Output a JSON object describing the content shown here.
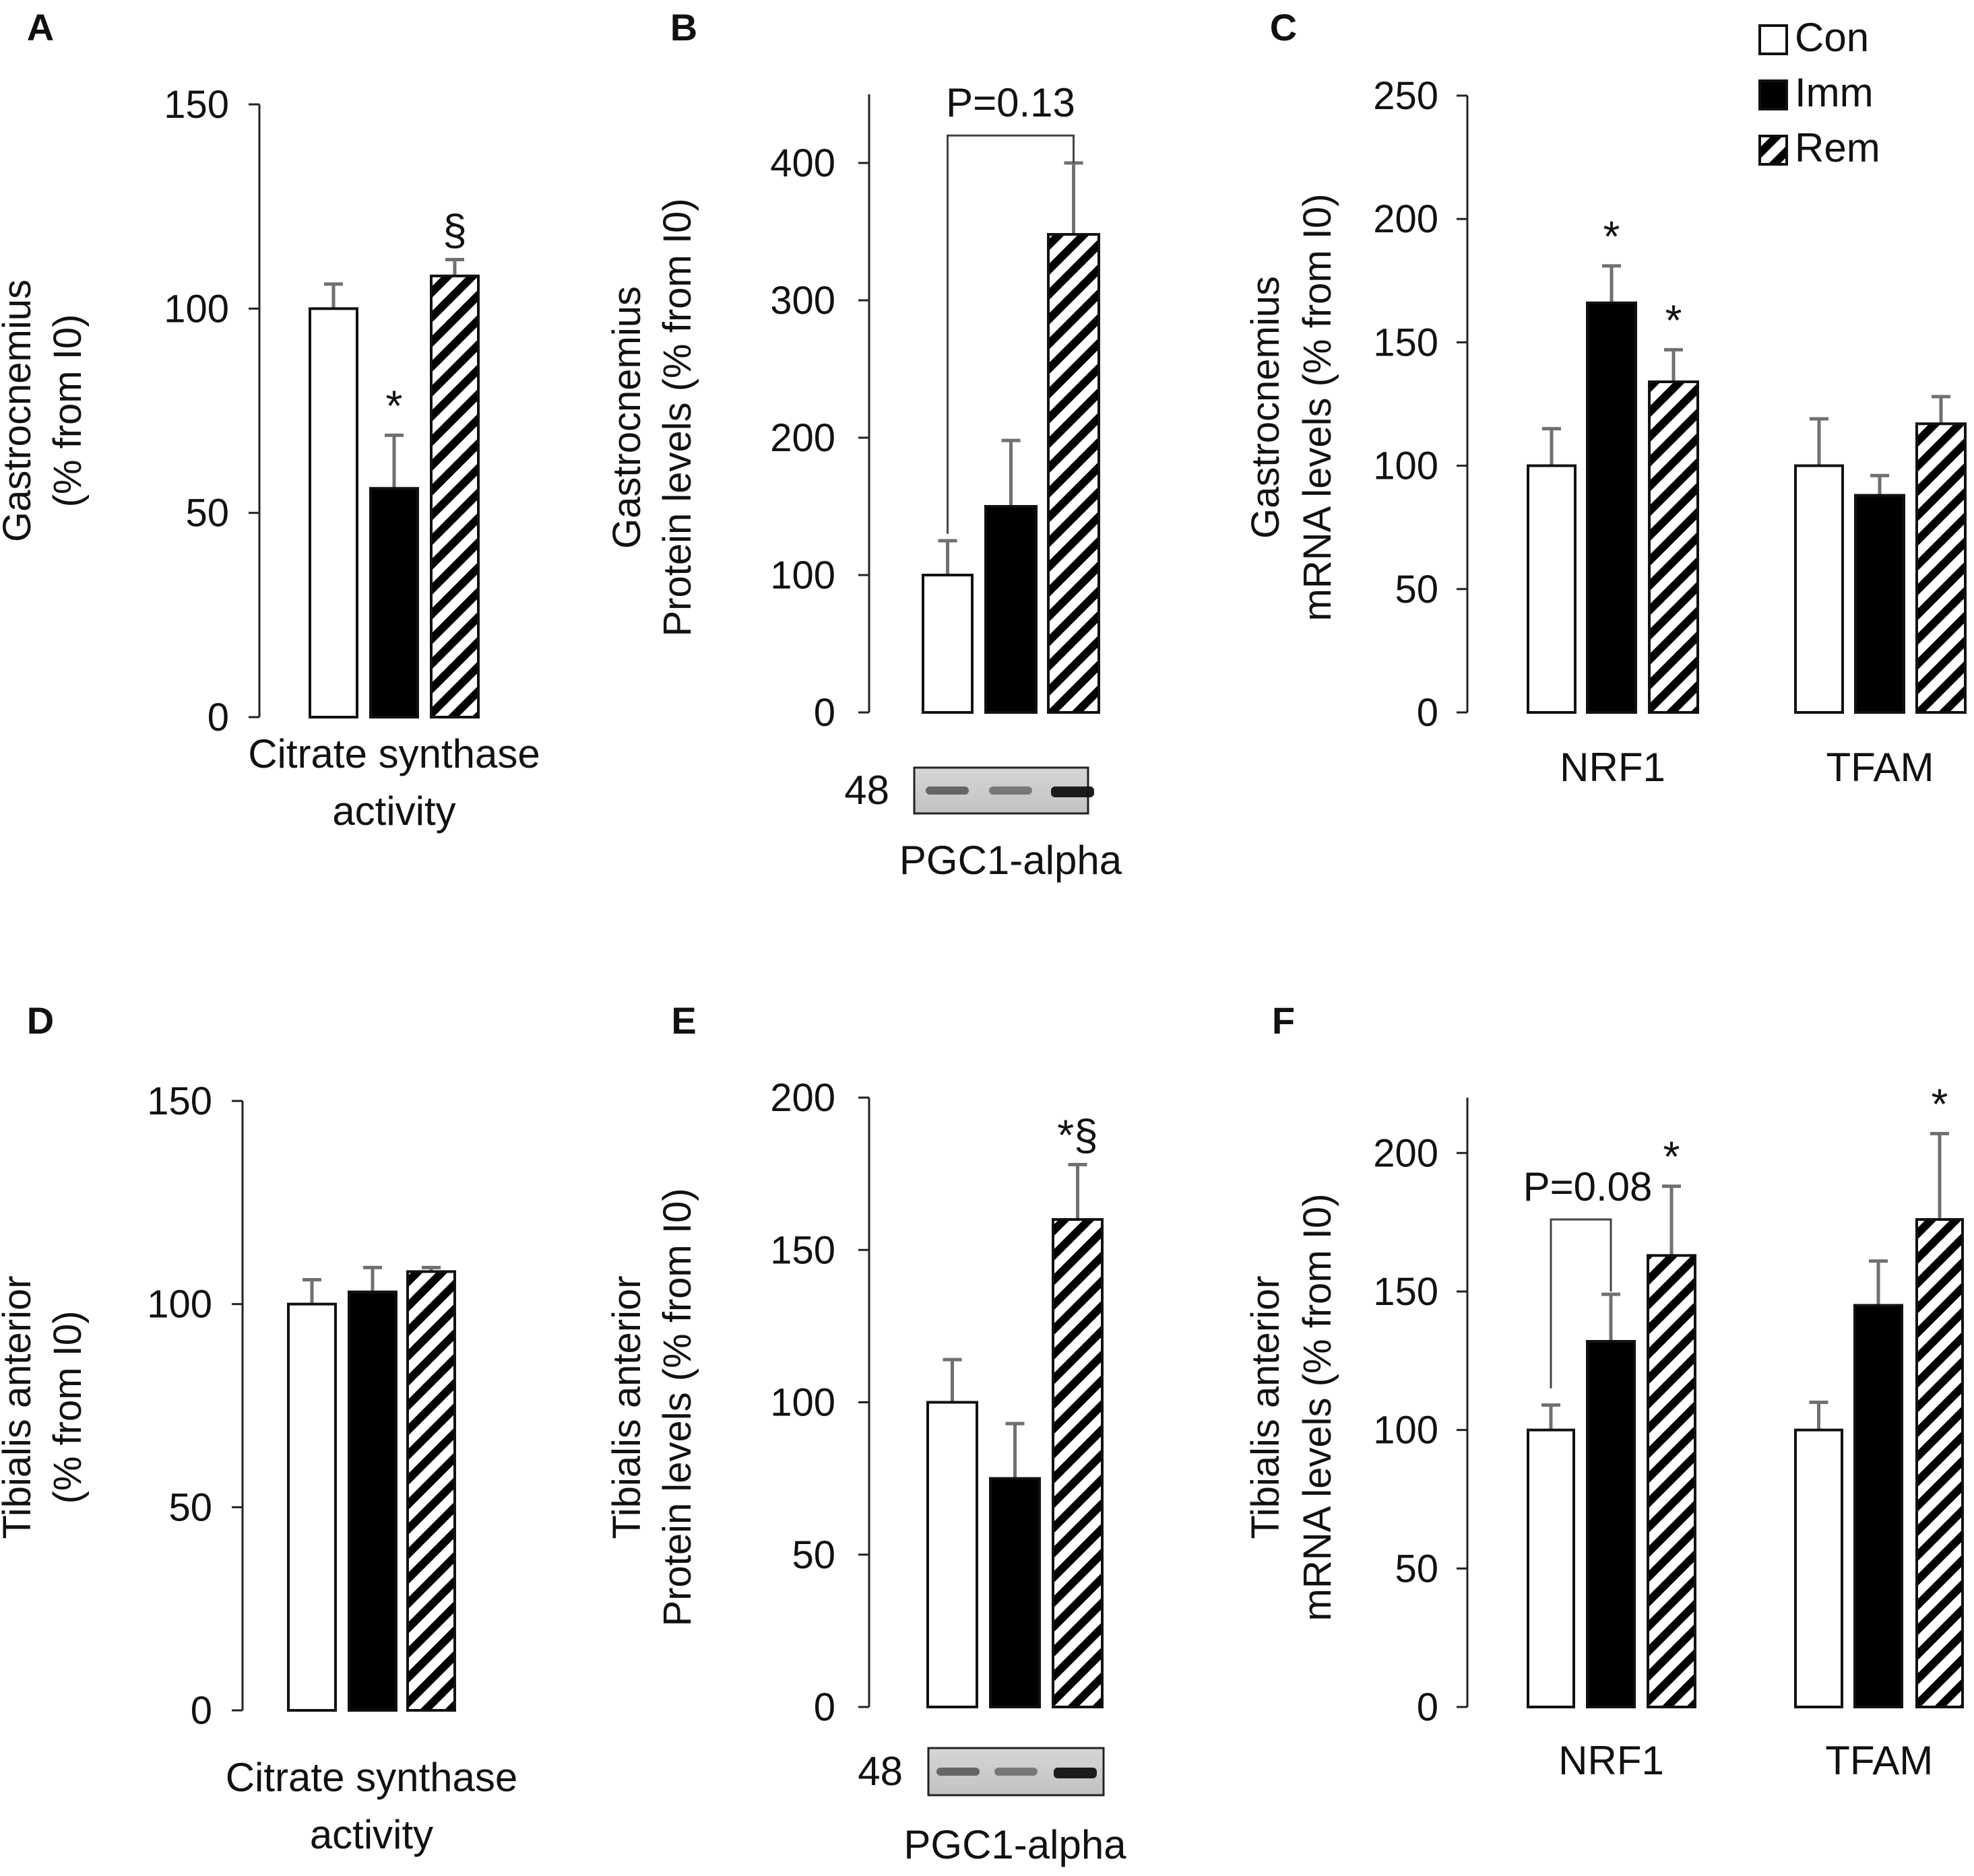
{
  "colors": {
    "con": "#ffffff",
    "imm": "#000000",
    "rem": "hatched"
  },
  "legend": {
    "items": [
      {
        "key": "con",
        "label": "Con"
      },
      {
        "key": "imm",
        "label": "Imm"
      },
      {
        "key": "rem",
        "label": "Rem"
      }
    ]
  },
  "chart_data": [
    {
      "panel": "A",
      "type": "bar",
      "ylabel": [
        "Gastrocnemius",
        "(% from I0)"
      ],
      "ylim": [
        0,
        150
      ],
      "yticks": [
        0,
        50,
        100,
        150
      ],
      "groups": [
        {
          "xlabel": [
            "Citrate synthase",
            "activity"
          ],
          "bars": [
            {
              "series": "Con",
              "value": 100,
              "err": 6,
              "mark": ""
            },
            {
              "series": "Imm",
              "value": 56,
              "err": 13,
              "mark": "*"
            },
            {
              "series": "Rem",
              "value": 108,
              "err": 4,
              "mark": "§"
            }
          ]
        }
      ]
    },
    {
      "panel": "B",
      "type": "bar",
      "ylabel": [
        "Gastrocnemius",
        "Protein levels (% from I0)"
      ],
      "ylim": [
        0,
        450
      ],
      "yticks": [
        0,
        100,
        200,
        300,
        400
      ],
      "groups": [
        {
          "xlabel": [
            "PGC1-alpha"
          ],
          "bars": [
            {
              "series": "Con",
              "value": 100,
              "err": 25,
              "mark": ""
            },
            {
              "series": "Imm",
              "value": 150,
              "err": 48,
              "mark": ""
            },
            {
              "series": "Rem",
              "value": 348,
              "err": 52,
              "mark": ""
            }
          ]
        }
      ],
      "bracket": {
        "from": 0,
        "to": 2,
        "label": "P=0.13"
      },
      "blot": {
        "mw": "48"
      }
    },
    {
      "panel": "C",
      "type": "bar",
      "ylabel": [
        "Gastrocnemius",
        "mRNA levels (% from I0)"
      ],
      "ylim": [
        0,
        250
      ],
      "yticks": [
        0,
        50,
        100,
        150,
        200,
        250
      ],
      "groups": [
        {
          "xlabel": [
            "NRF1"
          ],
          "bars": [
            {
              "series": "Con",
              "value": 100,
              "err": 15,
              "mark": ""
            },
            {
              "series": "Imm",
              "value": 166,
              "err": 15,
              "mark": "*"
            },
            {
              "series": "Rem",
              "value": 134,
              "err": 13,
              "mark": "*"
            }
          ]
        },
        {
          "xlabel": [
            "TFAM"
          ],
          "bars": [
            {
              "series": "Con",
              "value": 100,
              "err": 19,
              "mark": ""
            },
            {
              "series": "Imm",
              "value": 88,
              "err": 8,
              "mark": ""
            },
            {
              "series": "Rem",
              "value": 117,
              "err": 11,
              "mark": ""
            }
          ]
        }
      ]
    },
    {
      "panel": "D",
      "type": "bar",
      "ylabel": [
        "Tibialis anterior",
        "(% from I0)"
      ],
      "ylim": [
        0,
        150
      ],
      "yticks": [
        0,
        50,
        100,
        150
      ],
      "groups": [
        {
          "xlabel": [
            "Citrate synthase",
            "activity"
          ],
          "bars": [
            {
              "series": "Con",
              "value": 100,
              "err": 6,
              "mark": ""
            },
            {
              "series": "Imm",
              "value": 103,
              "err": 6,
              "mark": ""
            },
            {
              "series": "Rem",
              "value": 108,
              "err": 1,
              "mark": ""
            }
          ]
        }
      ]
    },
    {
      "panel": "E",
      "type": "bar",
      "ylabel": [
        "Tibialis anterior",
        "Protein levels (% from I0)"
      ],
      "ylim": [
        0,
        200
      ],
      "yticks": [
        0,
        50,
        100,
        150,
        200
      ],
      "groups": [
        {
          "xlabel": [
            "PGC1-alpha"
          ],
          "bars": [
            {
              "series": "Con",
              "value": 100,
              "err": 14,
              "mark": ""
            },
            {
              "series": "Imm",
              "value": 75,
              "err": 18,
              "mark": ""
            },
            {
              "series": "Rem",
              "value": 160,
              "err": 18,
              "mark": "*§"
            }
          ]
        }
      ],
      "blot": {
        "mw": "48"
      }
    },
    {
      "panel": "F",
      "type": "bar",
      "ylabel": [
        "Tibialis anterior",
        "mRNA levels (% from I0)"
      ],
      "ylim": [
        0,
        220
      ],
      "yticks": [
        0,
        50,
        100,
        150,
        200
      ],
      "groups": [
        {
          "xlabel": [
            "NRF1"
          ],
          "bars": [
            {
              "series": "Con",
              "value": 100,
              "err": 9,
              "mark": ""
            },
            {
              "series": "Imm",
              "value": 132,
              "err": 17,
              "mark": ""
            },
            {
              "series": "Rem",
              "value": 163,
              "err": 25,
              "mark": "*"
            }
          ]
        },
        {
          "xlabel": [
            "TFAM"
          ],
          "bars": [
            {
              "series": "Con",
              "value": 100,
              "err": 10,
              "mark": ""
            },
            {
              "series": "Imm",
              "value": 145,
              "err": 16,
              "mark": ""
            },
            {
              "series": "Rem",
              "value": 176,
              "err": 31,
              "mark": "*"
            }
          ]
        }
      ],
      "bracket": {
        "group": 0,
        "from": 0,
        "to": 1,
        "label": "P=0.08"
      }
    }
  ]
}
